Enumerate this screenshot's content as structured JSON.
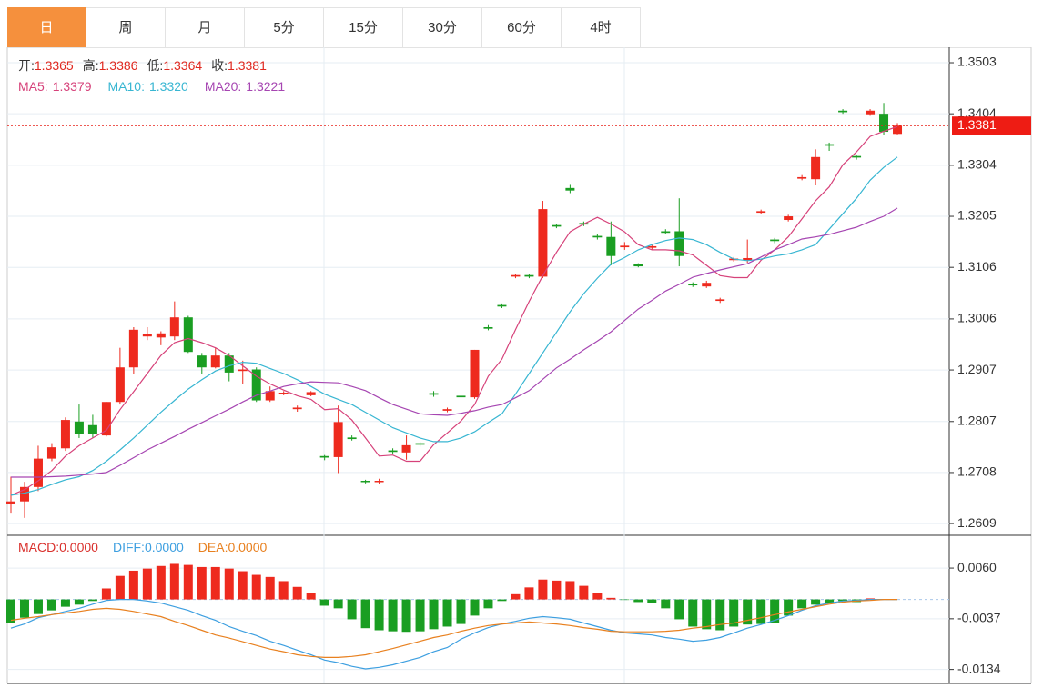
{
  "tabs": [
    "日",
    "周",
    "月",
    "5分",
    "15分",
    "30分",
    "60分",
    "4时"
  ],
  "chart_data": [
    {
      "type": "candlestick",
      "info": [
        {
          "name": "开:",
          "text": "1.3365"
        },
        {
          "name": "高:",
          "text": "1.3386"
        },
        {
          "name": "低:",
          "text": "1.3364"
        },
        {
          "name": "收:",
          "text": "1.3381"
        }
      ],
      "up_color": "#ee2a1e",
      "down_color": "#1a9e22",
      "open": [
        1.2648,
        1.2652,
        1.268,
        1.2735,
        1.2755,
        1.2807,
        1.28,
        1.278,
        1.2845,
        1.2912,
        1.2972,
        1.297,
        1.2972,
        1.3009,
        1.2935,
        1.2912,
        1.2935,
        1.2905,
        1.2908,
        1.2848,
        1.286,
        1.2831,
        1.2858,
        1.274,
        1.2738,
        1.2776,
        1.2692,
        1.269,
        1.2751,
        1.2747,
        1.2765,
        1.2862,
        1.2828,
        1.2857,
        1.2854,
        1.299,
        1.3033,
        1.3088,
        1.3091,
        1.3088,
        1.3188,
        1.326,
        1.3192,
        1.3167,
        1.3165,
        1.3145,
        1.3112,
        1.3144,
        1.3176,
        1.3176,
        1.3074,
        1.3069,
        1.3041,
        1.312,
        1.312,
        1.3212,
        1.316,
        1.3198,
        1.3278,
        1.3277,
        1.3345,
        1.341,
        1.3322,
        1.3403,
        1.3404,
        1.3365
      ],
      "high": [
        1.27,
        1.269,
        1.276,
        1.2765,
        1.2815,
        1.284,
        1.282,
        1.2845,
        1.295,
        1.299,
        1.299,
        1.2982,
        1.304,
        1.3012,
        1.294,
        1.295,
        1.294,
        1.2925,
        1.2912,
        1.2875,
        1.2866,
        1.2838,
        1.2866,
        1.2742,
        1.2838,
        1.278,
        1.2694,
        1.2696,
        1.2755,
        1.278,
        1.2768,
        1.2866,
        1.2834,
        1.286,
        1.2946,
        1.2994,
        1.3036,
        1.3093,
        1.3093,
        1.3235,
        1.3191,
        1.3266,
        1.3195,
        1.317,
        1.3195,
        1.3155,
        1.3114,
        1.3151,
        1.318,
        1.324,
        1.3077,
        1.308,
        1.3047,
        1.3126,
        1.316,
        1.3218,
        1.3163,
        1.3208,
        1.3285,
        1.3335,
        1.3348,
        1.3413,
        1.3325,
        1.3413,
        1.3425,
        1.3386
      ],
      "low": [
        1.263,
        1.262,
        1.2672,
        1.273,
        1.275,
        1.2775,
        1.2775,
        1.2778,
        1.284,
        1.29,
        1.2965,
        1.2955,
        1.2965,
        1.294,
        1.29,
        1.291,
        1.2885,
        1.288,
        1.2845,
        1.2845,
        1.2858,
        1.2826,
        1.2856,
        1.2732,
        1.2707,
        1.277,
        1.2687,
        1.2686,
        1.2745,
        1.2733,
        1.2758,
        1.2855,
        1.2825,
        1.2851,
        1.2851,
        1.2984,
        1.3027,
        1.3085,
        1.3085,
        1.3085,
        1.3182,
        1.325,
        1.3186,
        1.316,
        1.311,
        1.314,
        1.3106,
        1.314,
        1.317,
        1.3108,
        1.3068,
        1.3066,
        1.3037,
        1.3117,
        1.3115,
        1.3209,
        1.3153,
        1.3195,
        1.3275,
        1.3265,
        1.3332,
        1.3404,
        1.3315,
        1.34,
        1.3362,
        1.3364
      ],
      "close": [
        1.2652,
        1.268,
        1.2735,
        1.2757,
        1.281,
        1.2782,
        1.2782,
        1.2845,
        1.2912,
        1.2985,
        1.2976,
        1.2978,
        1.3009,
        1.2942,
        1.2912,
        1.2935,
        1.2902,
        1.2908,
        1.2848,
        1.2866,
        1.2863,
        1.2834,
        1.2864,
        1.2737,
        1.2806,
        1.2773,
        1.269,
        1.2692,
        1.2748,
        1.2761,
        1.2762,
        1.2859,
        1.2831,
        1.2854,
        1.2946,
        1.2987,
        1.303,
        1.3091,
        1.3088,
        1.3219,
        1.3185,
        1.3255,
        1.3189,
        1.3164,
        1.3128,
        1.3148,
        1.3108,
        1.3147,
        1.3173,
        1.3128,
        1.3071,
        1.3076,
        1.3044,
        1.3123,
        1.3124,
        1.3215,
        1.3157,
        1.3205,
        1.3281,
        1.332,
        1.3342,
        1.3407,
        1.3319,
        1.341,
        1.3369,
        1.3381
      ],
      "series": [
        {
          "name": "MA5:",
          "label": "1.3379",
          "color": "#d6427a",
          "values": [
            1.2664,
            1.2675,
            1.2692,
            1.2712,
            1.274,
            1.276,
            1.2775,
            1.279,
            1.283,
            1.2865,
            1.29,
            1.2935,
            1.296,
            1.2968,
            1.296,
            1.295,
            1.2935,
            1.2915,
            1.2895,
            1.288,
            1.2868,
            1.2857,
            1.285,
            1.283,
            1.2832,
            1.281,
            1.2775,
            1.274,
            1.2742,
            1.273,
            1.273,
            1.2762,
            1.2785,
            1.2808,
            1.284,
            1.2895,
            1.2928,
            1.2985,
            1.304,
            1.309,
            1.3135,
            1.3175,
            1.319,
            1.3203,
            1.319,
            1.3175,
            1.315,
            1.314,
            1.314,
            1.3138,
            1.313,
            1.311,
            1.309,
            1.3086,
            1.3086,
            1.312,
            1.314,
            1.3165,
            1.32,
            1.3235,
            1.3262,
            1.3305,
            1.333,
            1.336,
            1.337,
            1.3379
          ]
        },
        {
          "name": "MA10:",
          "label": "1.3320",
          "color": "#38b6d2",
          "values": [
            1.2664,
            1.2668,
            1.2675,
            1.2685,
            1.2694,
            1.27,
            1.2712,
            1.273,
            1.2752,
            1.2775,
            1.28,
            1.2825,
            1.2848,
            1.287,
            1.2888,
            1.2905,
            1.2915,
            1.2922,
            1.292,
            1.291,
            1.29,
            1.2888,
            1.2875,
            1.286,
            1.285,
            1.284,
            1.2825,
            1.281,
            1.2795,
            1.2785,
            1.2775,
            1.2768,
            1.2768,
            1.2775,
            1.2787,
            1.2805,
            1.2822,
            1.286,
            1.29,
            1.294,
            1.298,
            1.302,
            1.3055,
            1.3085,
            1.3112,
            1.3125,
            1.314,
            1.315,
            1.3158,
            1.3163,
            1.316,
            1.315,
            1.3135,
            1.3122,
            1.3119,
            1.3122,
            1.3128,
            1.3132,
            1.314,
            1.315,
            1.318,
            1.321,
            1.324,
            1.3275,
            1.33,
            1.332
          ]
        },
        {
          "name": "MA20:",
          "label": "1.3221",
          "color": "#a646b2",
          "values": [
            1.2699,
            1.2699,
            1.2699,
            1.27,
            1.2701,
            1.2703,
            1.2705,
            1.2708,
            1.2722,
            1.2737,
            1.2752,
            1.2765,
            1.2778,
            1.2792,
            1.2805,
            1.2818,
            1.2831,
            1.2845,
            1.2858,
            1.2866,
            1.2875,
            1.288,
            1.2884,
            1.2883,
            1.2882,
            1.2875,
            1.2867,
            1.2853,
            1.284,
            1.2831,
            1.2822,
            1.282,
            1.2819,
            1.2823,
            1.2828,
            1.2835,
            1.284,
            1.2853,
            1.2867,
            1.2889,
            1.2911,
            1.2928,
            1.2946,
            1.2963,
            1.2981,
            1.3003,
            1.3025,
            1.3042,
            1.306,
            1.3073,
            1.3087,
            1.3094,
            1.3101,
            1.3107,
            1.3113,
            1.3126,
            1.314,
            1.315,
            1.3161,
            1.3165,
            1.317,
            1.3177,
            1.3184,
            1.3195,
            1.3205,
            1.3221
          ]
        }
      ],
      "last_price": 1.3381,
      "ylim": [
        1.2588,
        1.3533
      ],
      "yticks": [
        1.2609,
        1.2708,
        1.2807,
        1.2907,
        1.3006,
        1.3106,
        1.3205,
        1.3304,
        1.3404,
        1.3503
      ],
      "grid": true
    },
    {
      "type": "macd",
      "histogram": {
        "name": "MACD:",
        "label": "0.0000",
        "color": "#d9302c",
        "up_color": "#ee2a1e",
        "down_color": "#1a9e22",
        "values": [
          -0.0045,
          -0.0035,
          -0.0028,
          -0.0021,
          -0.0014,
          -0.001,
          -0.0003,
          0.0021,
          0.0045,
          0.0055,
          0.0059,
          0.0064,
          0.0068,
          0.0066,
          0.0062,
          0.0062,
          0.0059,
          0.0054,
          0.0047,
          0.0043,
          0.0035,
          0.0024,
          0.0012,
          -0.0012,
          -0.0017,
          -0.0038,
          -0.0055,
          -0.0059,
          -0.0061,
          -0.0062,
          -0.0061,
          -0.0057,
          -0.0052,
          -0.0047,
          -0.0031,
          -0.0017,
          -0.0003,
          0.001,
          0.0023,
          0.0038,
          0.0036,
          0.0035,
          0.0026,
          0.0012,
          0.0003,
          -0.0001,
          -0.0005,
          -0.0007,
          -0.0017,
          -0.0038,
          -0.0052,
          -0.0057,
          -0.0059,
          -0.0052,
          -0.0048,
          -0.0047,
          -0.0045,
          -0.0031,
          -0.0017,
          -0.001,
          -0.0007,
          -0.0003,
          -0.0005,
          0.0002,
          0.0001,
          0
        ]
      },
      "series": [
        {
          "name": "DIFF:",
          "label": "0.0000",
          "color": "#3d9fe0",
          "values": [
            -0.0055,
            -0.0047,
            -0.0035,
            -0.0029,
            -0.0023,
            -0.0017,
            -0.0009,
            -0.0002,
            0,
            0,
            -0.0003,
            -0.0007,
            -0.0014,
            -0.0021,
            -0.0031,
            -0.004,
            -0.0052,
            -0.0061,
            -0.0069,
            -0.008,
            -0.0088,
            -0.0097,
            -0.0106,
            -0.0116,
            -0.0121,
            -0.0128,
            -0.0133,
            -0.013,
            -0.0125,
            -0.0118,
            -0.0111,
            -0.01,
            -0.0092,
            -0.0076,
            -0.0064,
            -0.0054,
            -0.0047,
            -0.0042,
            -0.0036,
            -0.0033,
            -0.0035,
            -0.0038,
            -0.0045,
            -0.0052,
            -0.0059,
            -0.0064,
            -0.0066,
            -0.0068,
            -0.0073,
            -0.0076,
            -0.008,
            -0.0078,
            -0.0073,
            -0.0064,
            -0.0055,
            -0.0048,
            -0.004,
            -0.0031,
            -0.0021,
            -0.0012,
            -0.0007,
            -0.0003,
            -0.0002,
            0,
            0,
            0
          ]
        },
        {
          "name": "DEA:",
          "label": "0.0000",
          "color": "#e8801f",
          "values": [
            -0.004,
            -0.0036,
            -0.0033,
            -0.0029,
            -0.0026,
            -0.0023,
            -0.0019,
            -0.0017,
            -0.0019,
            -0.0023,
            -0.0028,
            -0.0033,
            -0.0042,
            -0.005,
            -0.0059,
            -0.0068,
            -0.0074,
            -0.0081,
            -0.0088,
            -0.0095,
            -0.01,
            -0.0106,
            -0.0109,
            -0.0111,
            -0.0111,
            -0.0109,
            -0.0106,
            -0.01,
            -0.0094,
            -0.0087,
            -0.008,
            -0.0073,
            -0.0068,
            -0.0061,
            -0.0055,
            -0.005,
            -0.0047,
            -0.0045,
            -0.0043,
            -0.0045,
            -0.0047,
            -0.005,
            -0.0054,
            -0.0057,
            -0.0061,
            -0.0062,
            -0.0062,
            -0.0062,
            -0.0061,
            -0.0059,
            -0.0055,
            -0.0052,
            -0.0048,
            -0.0045,
            -0.004,
            -0.0035,
            -0.0029,
            -0.0024,
            -0.0019,
            -0.0014,
            -0.0009,
            -0.0005,
            -0.0003,
            -0.0002,
            0,
            0
          ]
        }
      ],
      "ylim": [
        -0.0159,
        0.0121
      ],
      "yticks": [
        -0.0134,
        -0.0037,
        {
          "value": 0.006,
          "label": "0.0060"
        }
      ],
      "grid": true
    }
  ]
}
